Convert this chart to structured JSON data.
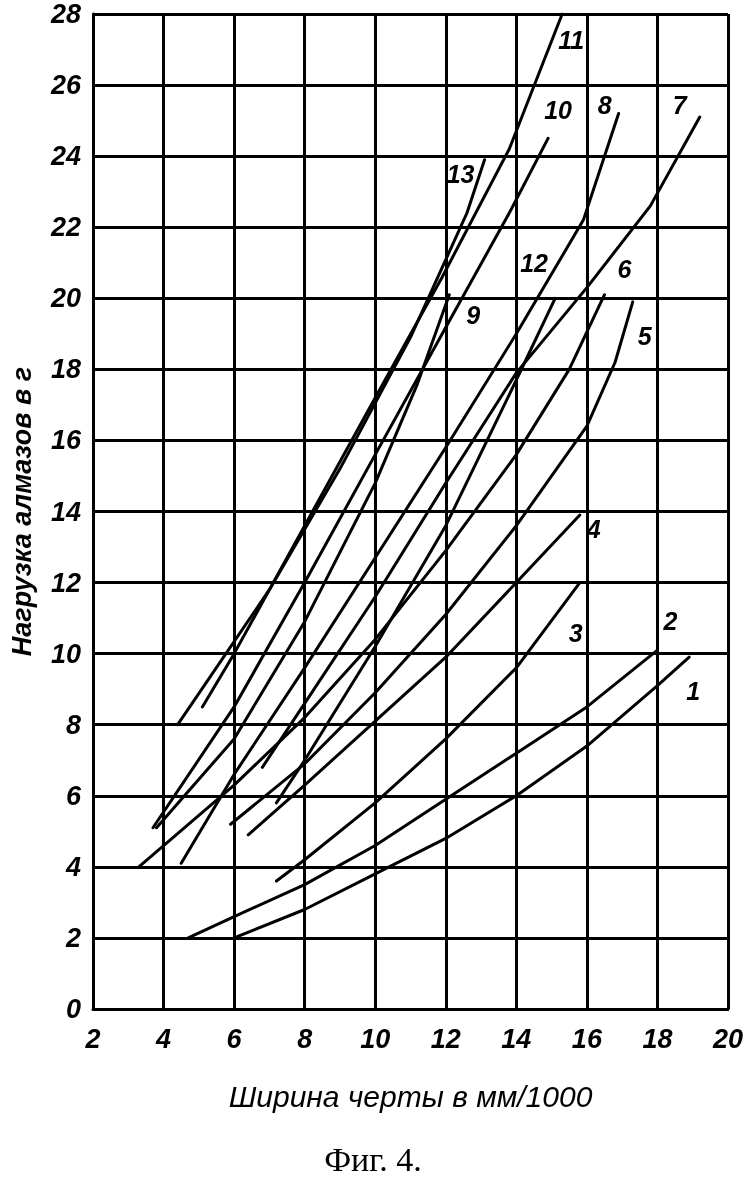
{
  "chart_data": {
    "type": "line",
    "xlabel": "Ширина черты в мм/1000",
    "ylabel": "Нагрузка алмазов в г",
    "annotations": [
      "Фиг. 4."
    ],
    "xlim": [
      2,
      20
    ],
    "ylim": [
      0,
      28
    ],
    "xticks": [
      2,
      4,
      6,
      8,
      10,
      12,
      14,
      16,
      18,
      20
    ],
    "yticks": [
      0,
      2,
      4,
      6,
      8,
      10,
      12,
      14,
      16,
      18,
      20,
      22,
      24,
      26,
      28
    ],
    "grid": true,
    "legend": false,
    "marker": "none",
    "line_style": "solid",
    "series": [
      {
        "name": "1",
        "color": "#000000",
        "x": [
          6.0,
          8,
          10,
          12,
          14,
          16,
          18,
          18.9
        ],
        "values": [
          2.0,
          2.8,
          3.8,
          4.8,
          6.0,
          7.4,
          9.1,
          9.9
        ]
      },
      {
        "name": "2",
        "color": "#000000",
        "x": [
          4.7,
          6,
          8,
          10,
          12,
          14,
          16,
          18.0
        ],
        "values": [
          2.0,
          2.6,
          3.5,
          4.6,
          5.9,
          7.2,
          8.5,
          10.1
        ]
      },
      {
        "name": "3",
        "color": "#000000",
        "x": [
          7.2,
          8,
          10,
          12,
          14,
          15.8
        ],
        "values": [
          3.6,
          4.2,
          5.8,
          7.6,
          9.6,
          12.0
        ]
      },
      {
        "name": "4",
        "color": "#000000",
        "x": [
          6.4,
          8,
          10,
          12,
          14,
          15.8
        ],
        "values": [
          4.9,
          6.3,
          8.1,
          9.9,
          12.0,
          13.9
        ]
      },
      {
        "name": "5",
        "color": "#000000",
        "x": [
          5.9,
          8,
          10,
          12,
          14,
          16,
          16.8,
          17.3
        ],
        "values": [
          5.2,
          6.9,
          8.9,
          11.1,
          13.6,
          16.4,
          18.2,
          19.9
        ]
      },
      {
        "name": "6",
        "color": "#000000",
        "x": [
          3.3,
          6,
          8,
          10,
          12,
          14,
          15.5,
          16.5
        ],
        "values": [
          4.0,
          6.3,
          8.2,
          10.4,
          12.9,
          15.6,
          18.0,
          20.1
        ]
      },
      {
        "name": "7",
        "color": "#000000",
        "x": [
          6.8,
          8,
          10,
          12,
          14,
          16,
          17.8,
          19.2
        ],
        "values": [
          6.8,
          8.6,
          11.6,
          14.8,
          17.9,
          20.3,
          22.6,
          25.1
        ]
      },
      {
        "name": "8",
        "color": "#000000",
        "x": [
          4.5,
          6,
          8,
          10,
          12,
          14,
          15.9,
          16.9
        ],
        "values": [
          4.1,
          6.6,
          9.6,
          12.7,
          15.8,
          19.0,
          22.2,
          25.2
        ]
      },
      {
        "name": "9",
        "color": "#000000",
        "x": [
          3.8,
          6,
          8,
          10,
          11.2,
          12.1
        ],
        "values": [
          5.1,
          7.6,
          10.9,
          14.8,
          17.6,
          20.1
        ]
      },
      {
        "name": "10",
        "color": "#000000",
        "x": [
          3.7,
          6,
          8,
          10,
          11.9,
          13.8,
          14.9
        ],
        "values": [
          5.1,
          8.5,
          12.0,
          15.6,
          19.0,
          22.4,
          24.5
        ]
      },
      {
        "name": "11",
        "color": "#000000",
        "x": [
          5.1,
          6,
          8,
          10,
          11.9,
          13.8,
          15.3
        ],
        "values": [
          8.5,
          10.0,
          13.6,
          17.2,
          20.6,
          24.2,
          28.0
        ]
      },
      {
        "name": "12",
        "color": "#000000",
        "x": [
          7.2,
          8,
          10,
          12,
          14,
          15.1
        ],
        "values": [
          5.8,
          7.0,
          10.2,
          13.6,
          17.7,
          20.0
        ]
      },
      {
        "name": "13",
        "color": "#000000",
        "x": [
          4.4,
          7,
          9,
          11,
          12.6,
          13.1
        ],
        "values": [
          8.0,
          11.8,
          15.2,
          18.9,
          22.4,
          23.9
        ]
      }
    ]
  }
}
